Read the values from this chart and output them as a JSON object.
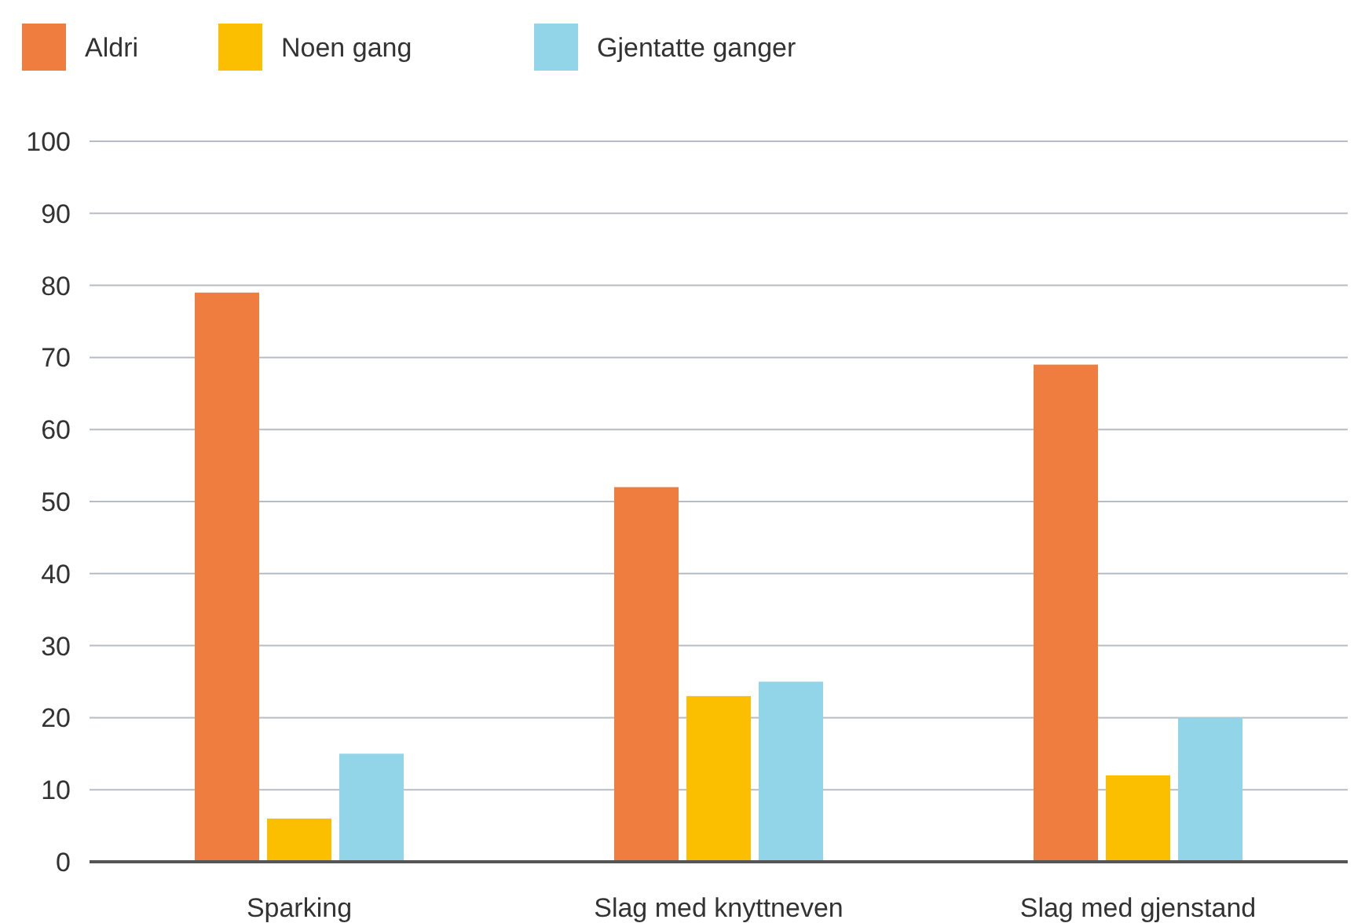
{
  "chart_data": {
    "type": "bar",
    "categories": [
      "Sparking",
      "Slag med knyttneven",
      "Slag med gjenstand"
    ],
    "series": [
      {
        "name": "Aldri",
        "color": "#ef7d3f",
        "values": [
          79,
          52,
          69
        ]
      },
      {
        "name": "Noen gang",
        "color": "#fbbf00",
        "values": [
          6,
          23,
          12
        ]
      },
      {
        "name": "Gjentatte ganger",
        "color": "#93d5e8",
        "values": [
          15,
          25,
          20
        ]
      }
    ],
    "ylim": [
      0,
      100
    ],
    "yticks": [
      0,
      10,
      20,
      30,
      40,
      50,
      60,
      70,
      80,
      90,
      100
    ],
    "grid": "y",
    "legend": "top left"
  }
}
